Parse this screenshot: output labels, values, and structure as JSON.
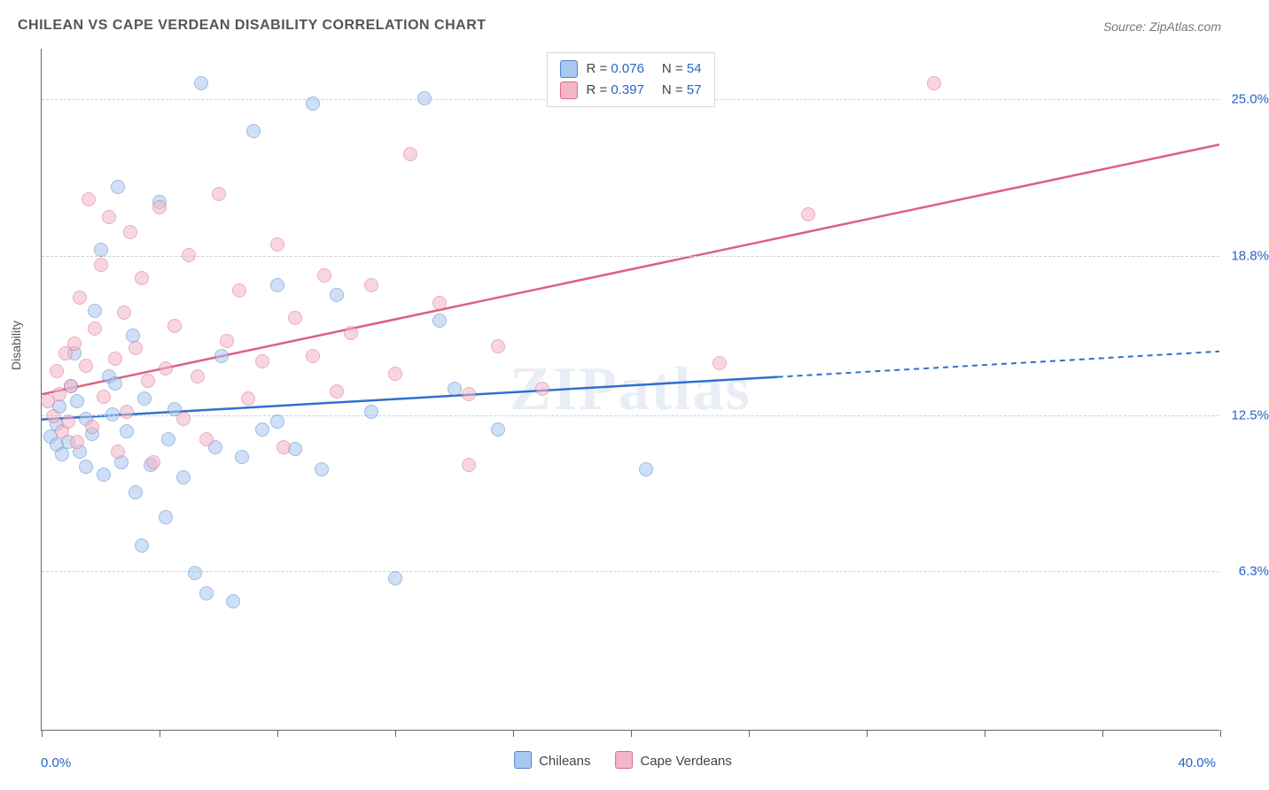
{
  "title": "CHILEAN VS CAPE VERDEAN DISABILITY CORRELATION CHART",
  "source_label": "Source: ZipAtlas.com",
  "ylabel": "Disability",
  "watermark": "ZIPatlas",
  "chart": {
    "type": "scatter",
    "xlim": [
      0,
      40
    ],
    "ylim": [
      0,
      27
    ],
    "x_min_label": "0.0%",
    "x_max_label": "40.0%",
    "y_tick_positions": [
      6.3,
      12.5,
      18.8,
      25.0
    ],
    "y_tick_labels": [
      "6.3%",
      "12.5%",
      "18.8%",
      "25.0%"
    ],
    "x_tick_positions": [
      0,
      4,
      8,
      12,
      16,
      20,
      24,
      28,
      32,
      36,
      40
    ],
    "grid_color": "#d0d0d0",
    "axis_color": "#666666",
    "background_color": "#ffffff",
    "marker_radius": 8,
    "marker_opacity": 0.55,
    "title_fontsize": 16,
    "axis_label_fontsize": 14,
    "tick_label_color": "#2864c7"
  },
  "series": [
    {
      "key": "chileans",
      "label": "Chileans",
      "fill": "#a9c8ef",
      "stroke": "#4f84d3",
      "line_color": "#2f6fd0",
      "R": "0.076",
      "N": "54",
      "trend": {
        "x1": 0,
        "y1": 12.3,
        "x2": 40,
        "y2": 15.0,
        "dash_after_x": 25
      },
      "points": [
        [
          0.3,
          11.6
        ],
        [
          0.5,
          12.1
        ],
        [
          0.5,
          11.3
        ],
        [
          0.6,
          12.8
        ],
        [
          0.7,
          10.9
        ],
        [
          0.9,
          11.4
        ],
        [
          1.0,
          13.6
        ],
        [
          1.1,
          14.9
        ],
        [
          1.2,
          13.0
        ],
        [
          1.3,
          11.0
        ],
        [
          1.5,
          10.4
        ],
        [
          1.5,
          12.3
        ],
        [
          1.7,
          11.7
        ],
        [
          1.8,
          16.6
        ],
        [
          2.0,
          19.0
        ],
        [
          2.1,
          10.1
        ],
        [
          2.3,
          14.0
        ],
        [
          2.4,
          12.5
        ],
        [
          2.5,
          13.7
        ],
        [
          2.6,
          21.5
        ],
        [
          2.7,
          10.6
        ],
        [
          2.9,
          11.8
        ],
        [
          3.1,
          15.6
        ],
        [
          3.2,
          9.4
        ],
        [
          3.4,
          7.3
        ],
        [
          3.5,
          13.1
        ],
        [
          3.7,
          10.5
        ],
        [
          4.0,
          20.9
        ],
        [
          4.2,
          8.4
        ],
        [
          4.3,
          11.5
        ],
        [
          4.5,
          12.7
        ],
        [
          4.8,
          10.0
        ],
        [
          5.2,
          6.2
        ],
        [
          5.4,
          25.6
        ],
        [
          5.6,
          5.4
        ],
        [
          5.9,
          11.2
        ],
        [
          6.1,
          14.8
        ],
        [
          6.5,
          5.1
        ],
        [
          6.8,
          10.8
        ],
        [
          7.2,
          23.7
        ],
        [
          7.5,
          11.9
        ],
        [
          8.0,
          17.6
        ],
        [
          8.0,
          12.2
        ],
        [
          8.6,
          11.1
        ],
        [
          9.2,
          24.8
        ],
        [
          9.5,
          10.3
        ],
        [
          10.0,
          17.2
        ],
        [
          11.2,
          12.6
        ],
        [
          12.0,
          6.0
        ],
        [
          13.0,
          25.0
        ],
        [
          13.5,
          16.2
        ],
        [
          14.0,
          13.5
        ],
        [
          15.5,
          11.9
        ],
        [
          20.5,
          10.3
        ]
      ]
    },
    {
      "key": "cape_verdeans",
      "label": "Cape Verdeans",
      "fill": "#f3b6c6",
      "stroke": "#dc6a8e",
      "line_color": "#de5f84",
      "R": "0.397",
      "N": "57",
      "trend": {
        "x1": 0,
        "y1": 13.3,
        "x2": 40,
        "y2": 23.2,
        "dash_after_x": 40
      },
      "points": [
        [
          0.2,
          13.0
        ],
        [
          0.4,
          12.4
        ],
        [
          0.5,
          14.2
        ],
        [
          0.6,
          13.3
        ],
        [
          0.7,
          11.8
        ],
        [
          0.8,
          14.9
        ],
        [
          0.9,
          12.2
        ],
        [
          1.0,
          13.6
        ],
        [
          1.1,
          15.3
        ],
        [
          1.2,
          11.4
        ],
        [
          1.3,
          17.1
        ],
        [
          1.5,
          14.4
        ],
        [
          1.6,
          21.0
        ],
        [
          1.7,
          12.0
        ],
        [
          1.8,
          15.9
        ],
        [
          2.0,
          18.4
        ],
        [
          2.1,
          13.2
        ],
        [
          2.3,
          20.3
        ],
        [
          2.5,
          14.7
        ],
        [
          2.6,
          11.0
        ],
        [
          2.8,
          16.5
        ],
        [
          2.9,
          12.6
        ],
        [
          3.0,
          19.7
        ],
        [
          3.2,
          15.1
        ],
        [
          3.4,
          17.9
        ],
        [
          3.6,
          13.8
        ],
        [
          3.8,
          10.6
        ],
        [
          4.0,
          20.7
        ],
        [
          4.2,
          14.3
        ],
        [
          4.5,
          16.0
        ],
        [
          4.8,
          12.3
        ],
        [
          5.0,
          18.8
        ],
        [
          5.3,
          14.0
        ],
        [
          5.6,
          11.5
        ],
        [
          6.0,
          21.2
        ],
        [
          6.3,
          15.4
        ],
        [
          6.7,
          17.4
        ],
        [
          7.0,
          13.1
        ],
        [
          7.5,
          14.6
        ],
        [
          8.0,
          19.2
        ],
        [
          8.2,
          11.2
        ],
        [
          8.6,
          16.3
        ],
        [
          9.2,
          14.8
        ],
        [
          9.6,
          18.0
        ],
        [
          10.0,
          13.4
        ],
        [
          10.5,
          15.7
        ],
        [
          11.2,
          17.6
        ],
        [
          12.0,
          14.1
        ],
        [
          12.5,
          22.8
        ],
        [
          13.5,
          16.9
        ],
        [
          14.5,
          13.3
        ],
        [
          14.5,
          10.5
        ],
        [
          15.5,
          15.2
        ],
        [
          17.0,
          13.5
        ],
        [
          23.0,
          14.5
        ],
        [
          26.0,
          20.4
        ],
        [
          30.3,
          25.6
        ]
      ]
    }
  ],
  "legend_top": {
    "r_prefix": "R =",
    "n_prefix": "N ="
  },
  "legend_bottom": {
    "items": [
      "Chileans",
      "Cape Verdeans"
    ]
  }
}
